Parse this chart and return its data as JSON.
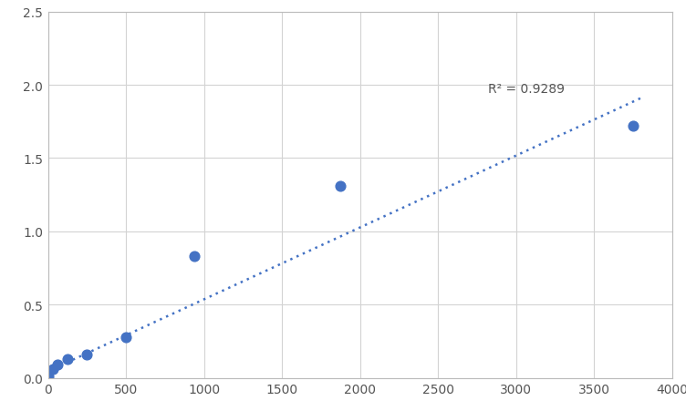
{
  "x": [
    0,
    31.25,
    62.5,
    125,
    250,
    500,
    937.5,
    1875,
    3750
  ],
  "y": [
    0.01,
    0.06,
    0.09,
    0.13,
    0.16,
    0.28,
    0.83,
    1.31,
    1.72
  ],
  "trendline_x": [
    0,
    3800
  ],
  "trendline_y": [
    0.047,
    1.91
  ],
  "r_squared": "R² = 0.9289",
  "r_squared_xy": [
    2820,
    1.93
  ],
  "dot_color": "#4472C4",
  "line_color": "#4472C4",
  "xlim": [
    0,
    4000
  ],
  "ylim": [
    0,
    2.5
  ],
  "xticks": [
    0,
    500,
    1000,
    1500,
    2000,
    2500,
    3000,
    3500,
    4000
  ],
  "yticks": [
    0,
    0.5,
    1.0,
    1.5,
    2.0,
    2.5
  ],
  "grid_color": "#D3D3D3",
  "background_color": "#FFFFFF",
  "marker_size": 60,
  "figure_width": 7.52,
  "figure_height": 4.52,
  "dpi": 100
}
